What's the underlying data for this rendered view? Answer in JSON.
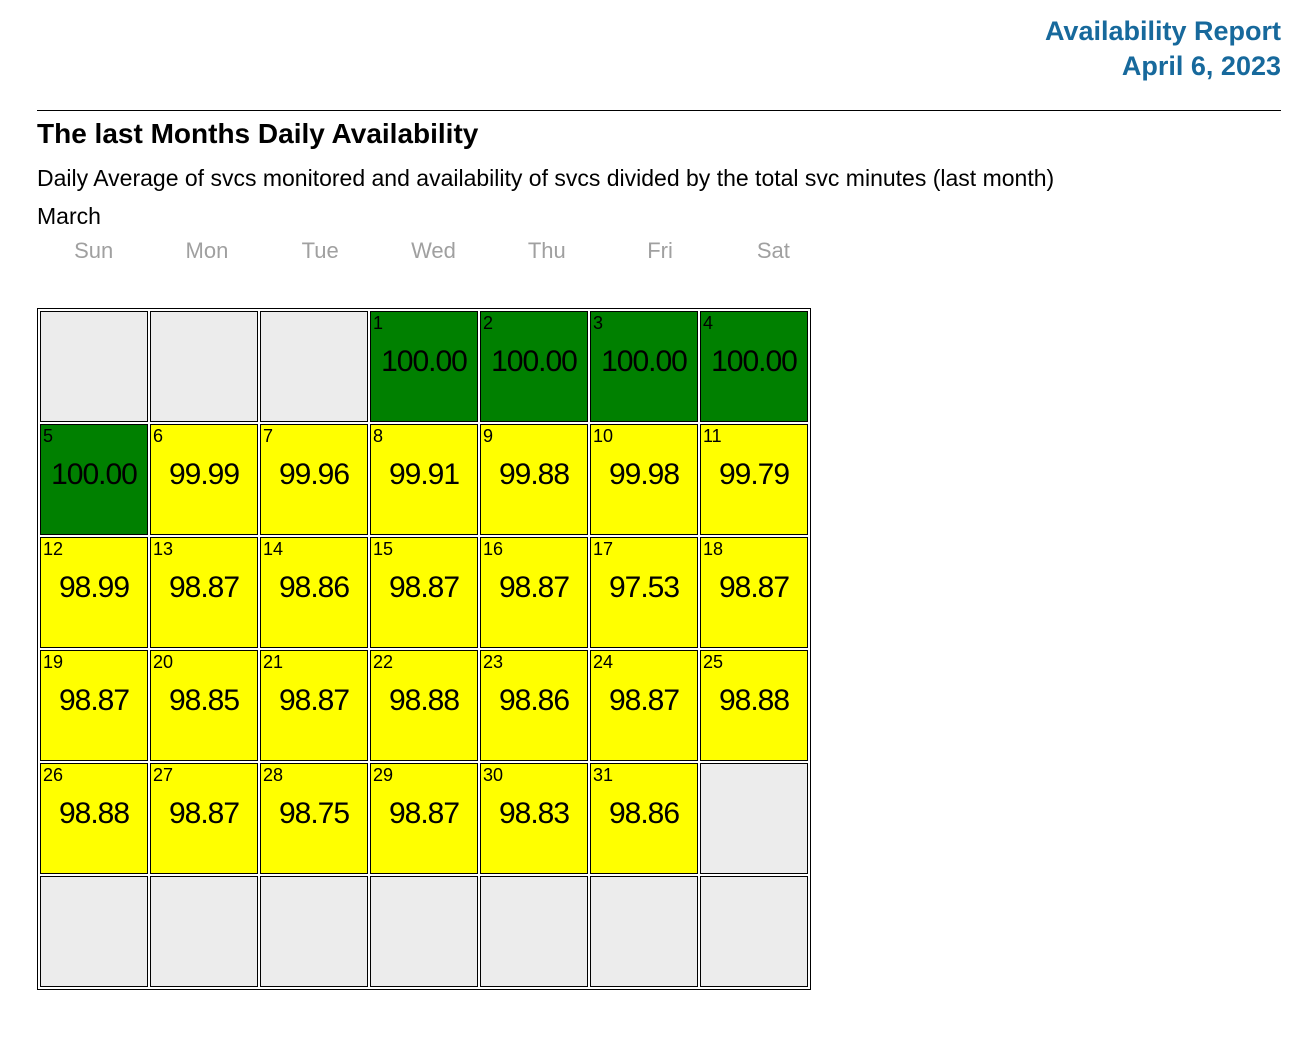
{
  "header": {
    "title": "Availability Report",
    "date": "April 6, 2023",
    "accent_color": "#17699c"
  },
  "section": {
    "heading": "The last Months Daily Availability",
    "description": "Daily Average of svcs monitored and availability of svcs divided by the total svc minutes (last month)",
    "month_label": "March"
  },
  "calendar": {
    "weekday_headers": [
      "Sun",
      "Mon",
      "Tue",
      "Wed",
      "Thu",
      "Fri",
      "Sat"
    ],
    "status_colors": {
      "full": "#008000",
      "degraded": "#ffff00",
      "empty": "#ececec"
    },
    "weeks": [
      [
        null,
        null,
        null,
        {
          "day": "1",
          "value": "100.00",
          "status": "full"
        },
        {
          "day": "2",
          "value": "100.00",
          "status": "full"
        },
        {
          "day": "3",
          "value": "100.00",
          "status": "full"
        },
        {
          "day": "4",
          "value": "100.00",
          "status": "full"
        }
      ],
      [
        {
          "day": "5",
          "value": "100.00",
          "status": "full"
        },
        {
          "day": "6",
          "value": "99.99",
          "status": "degraded"
        },
        {
          "day": "7",
          "value": "99.96",
          "status": "degraded"
        },
        {
          "day": "8",
          "value": "99.91",
          "status": "degraded"
        },
        {
          "day": "9",
          "value": "99.88",
          "status": "degraded"
        },
        {
          "day": "10",
          "value": "99.98",
          "status": "degraded"
        },
        {
          "day": "11",
          "value": "99.79",
          "status": "degraded"
        }
      ],
      [
        {
          "day": "12",
          "value": "98.99",
          "status": "degraded"
        },
        {
          "day": "13",
          "value": "98.87",
          "status": "degraded"
        },
        {
          "day": "14",
          "value": "98.86",
          "status": "degraded"
        },
        {
          "day": "15",
          "value": "98.87",
          "status": "degraded"
        },
        {
          "day": "16",
          "value": "98.87",
          "status": "degraded"
        },
        {
          "day": "17",
          "value": "97.53",
          "status": "degraded"
        },
        {
          "day": "18",
          "value": "98.87",
          "status": "degraded"
        }
      ],
      [
        {
          "day": "19",
          "value": "98.87",
          "status": "degraded"
        },
        {
          "day": "20",
          "value": "98.85",
          "status": "degraded"
        },
        {
          "day": "21",
          "value": "98.87",
          "status": "degraded"
        },
        {
          "day": "22",
          "value": "98.88",
          "status": "degraded"
        },
        {
          "day": "23",
          "value": "98.86",
          "status": "degraded"
        },
        {
          "day": "24",
          "value": "98.87",
          "status": "degraded"
        },
        {
          "day": "25",
          "value": "98.88",
          "status": "degraded"
        }
      ],
      [
        {
          "day": "26",
          "value": "98.88",
          "status": "degraded"
        },
        {
          "day": "27",
          "value": "98.87",
          "status": "degraded"
        },
        {
          "day": "28",
          "value": "98.75",
          "status": "degraded"
        },
        {
          "day": "29",
          "value": "98.87",
          "status": "degraded"
        },
        {
          "day": "30",
          "value": "98.83",
          "status": "degraded"
        },
        {
          "day": "31",
          "value": "98.86",
          "status": "degraded"
        },
        null
      ],
      [
        null,
        null,
        null,
        null,
        null,
        null,
        null
      ]
    ]
  }
}
